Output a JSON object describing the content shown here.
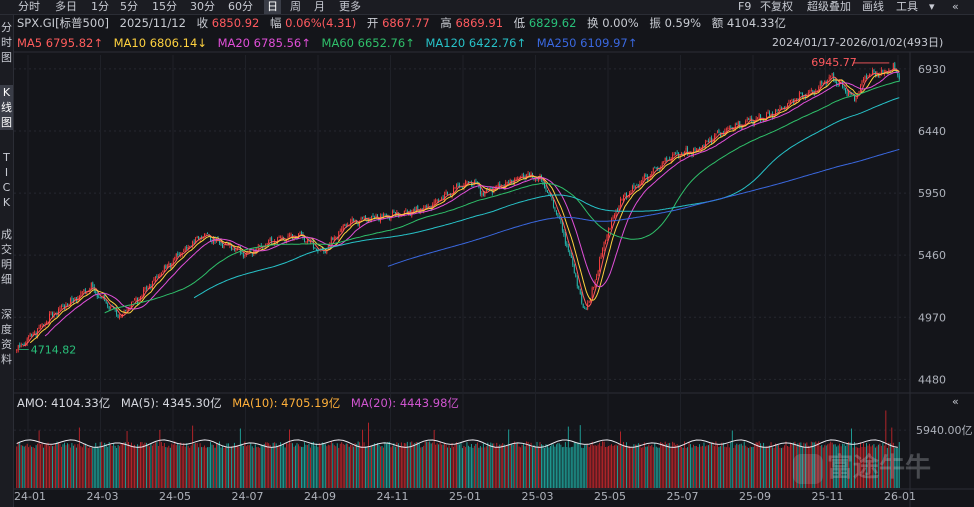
{
  "toolbar": {
    "tabs": [
      "分时",
      "多日",
      "1分",
      "5分",
      "15分",
      "30分",
      "60分",
      "日",
      "周",
      "月",
      "更多"
    ],
    "active_tab": "日",
    "right_tools": [
      "F9",
      "不复权",
      "超级叠加",
      "画线",
      "工具"
    ]
  },
  "sidebar": {
    "items": [
      "分\n时\n图",
      "K\n线\n图",
      "T\nI\nC\nK",
      "成\n交\n明\n细",
      "深\n度\n资\n料"
    ],
    "active_index": 1
  },
  "quote": {
    "symbol": "SPX.GI[标普500]",
    "date": "2025/11/12",
    "close_label": "收",
    "close": "6850.92",
    "change_label": "幅",
    "change": "0.06%(4.31)",
    "open_label": "开",
    "open": "6867.77",
    "high_label": "高",
    "high": "6869.91",
    "low_label": "低",
    "low": "6829.62",
    "turnover_label": "换",
    "turnover": "0.00%",
    "amplitude_label": "振",
    "amplitude": "0.59%",
    "amount_label": "额",
    "amount": "4104.33亿"
  },
  "ma_row": [
    {
      "label": "MA5",
      "value": "6795.82↑",
      "color": "#ff5c5c"
    },
    {
      "label": "MA10",
      "value": "6806.14↓",
      "color": "#ffd23f"
    },
    {
      "label": "MA20",
      "value": "6785.56↑",
      "color": "#e04fd8"
    },
    {
      "label": "MA60",
      "value": "6652.76↑",
      "color": "#2fc06a"
    },
    {
      "label": "MA120",
      "value": "6422.76↑",
      "color": "#27c2c8"
    },
    {
      "label": "MA250",
      "value": "6109.97↑",
      "color": "#3a68e0"
    }
  ],
  "range_label": "2024/01/17-2026/01/02(493日)",
  "amo_row": [
    {
      "label": "AMO:",
      "value": "4104.33亿",
      "color": "#d7d9e0"
    },
    {
      "label": "MA(5):",
      "value": "4345.30亿",
      "color": "#d7d9e0"
    },
    {
      "label": "MA(10):",
      "value": "4705.19亿",
      "color": "#ffb03a"
    },
    {
      "label": "MA(20):",
      "value": "4443.98亿",
      "color": "#d055d0"
    }
  ],
  "watermark": "富途牛牛",
  "colors": {
    "up": "#ff4040",
    "down": "#27c1b6",
    "grid": "#262830",
    "label_high": "#ff5a5f",
    "label_low": "#29c07a"
  },
  "chart_data": {
    "type": "candlestick",
    "x_tick_labels": [
      "24-01",
      "24-03",
      "24-05",
      "24-07",
      "24-09",
      "24-11",
      "25-01",
      "25-03",
      "25-05",
      "25-07",
      "25-09",
      "25-11",
      "26-01"
    ],
    "price_ticks": [
      6930,
      6440,
      5950,
      5460,
      4970,
      4480
    ],
    "price_range": [
      4380,
      7040
    ],
    "volume_tick": "5940.00亿",
    "volume_tick_value": 5940,
    "volume_max": 8000,
    "annotations": {
      "high": "6945.77",
      "low": "4714.82"
    },
    "price_path": [
      [
        0,
        4714.82
      ],
      [
        25,
        5000
      ],
      [
        50,
        5210
      ],
      [
        60,
        5080
      ],
      [
        70,
        4975
      ],
      [
        95,
        5300
      ],
      [
        110,
        5480
      ],
      [
        125,
        5630
      ],
      [
        140,
        5540
      ],
      [
        155,
        5470
      ],
      [
        170,
        5560
      ],
      [
        190,
        5620
      ],
      [
        205,
        5480
      ],
      [
        222,
        5720
      ],
      [
        240,
        5760
      ],
      [
        255,
        5780
      ],
      [
        275,
        5830
      ],
      [
        295,
        5990
      ],
      [
        305,
        6050
      ],
      [
        312,
        5955
      ],
      [
        322,
        6000
      ],
      [
        335,
        6060
      ],
      [
        345,
        6090
      ],
      [
        352,
        6050
      ],
      [
        360,
        5870
      ],
      [
        368,
        5590
      ],
      [
        375,
        5300
      ],
      [
        380,
        5020
      ],
      [
        385,
        5120
      ],
      [
        395,
        5600
      ],
      [
        405,
        5900
      ],
      [
        420,
        6050
      ],
      [
        440,
        6250
      ],
      [
        455,
        6280
      ],
      [
        470,
        6420
      ],
      [
        490,
        6510
      ],
      [
        505,
        6560
      ],
      [
        515,
        6630
      ],
      [
        525,
        6710
      ],
      [
        535,
        6760
      ],
      [
        546,
        6880
      ],
      [
        556,
        6760
      ],
      [
        562,
        6700
      ],
      [
        570,
        6880
      ],
      [
        580,
        6890
      ],
      [
        588,
        6940
      ],
      [
        592,
        6851
      ]
    ],
    "volume_base": 4300,
    "volume_spikes": [
      [
        15,
        5900
      ],
      [
        42,
        6200
      ],
      [
        74,
        5850
      ],
      [
        96,
        5950
      ],
      [
        118,
        6400
      ],
      [
        150,
        6100
      ],
      [
        183,
        6000
      ],
      [
        232,
        5980
      ],
      [
        236,
        6700
      ],
      [
        280,
        5950
      ],
      [
        330,
        6000
      ],
      [
        370,
        6300
      ],
      [
        378,
        6450
      ],
      [
        405,
        5800
      ],
      [
        480,
        5900
      ],
      [
        560,
        6100
      ],
      [
        583,
        7950
      ],
      [
        587,
        6200
      ]
    ]
  }
}
